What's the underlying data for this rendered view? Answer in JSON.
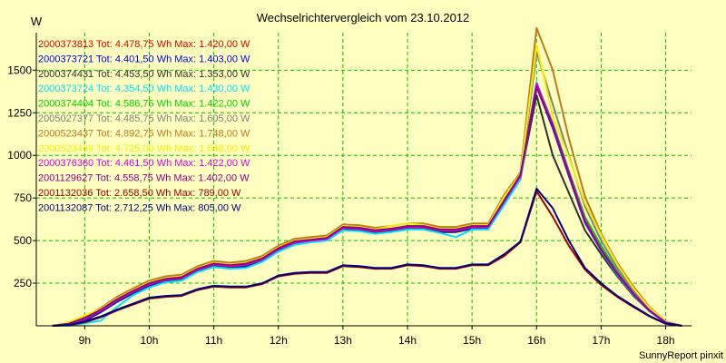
{
  "chart_data": {
    "type": "line",
    "title": "Wechselrichtervergleich vom 23.10.2012",
    "ylabel": "W",
    "xlabel": "",
    "credit": "SunnyReport pinxit",
    "xlim": [
      8.25,
      18.4
    ],
    "ylim": [
      0,
      1720
    ],
    "grid": true,
    "legend_placement": "top-left",
    "xticks": [
      {
        "value": 9,
        "label": "9h"
      },
      {
        "value": 10,
        "label": "10h"
      },
      {
        "value": 11,
        "label": "11h"
      },
      {
        "value": 12,
        "label": "12h"
      },
      {
        "value": 13,
        "label": "13h"
      },
      {
        "value": 14,
        "label": "14h"
      },
      {
        "value": 15,
        "label": "15h"
      },
      {
        "value": 16,
        "label": "16h"
      },
      {
        "value": 17,
        "label": "17h"
      },
      {
        "value": 18,
        "label": "18h"
      }
    ],
    "yticks": [
      {
        "value": 250,
        "label": "250"
      },
      {
        "value": 500,
        "label": "500"
      },
      {
        "value": 750,
        "label": "750"
      },
      {
        "value": 1000,
        "label": "1000"
      },
      {
        "value": 1250,
        "label": "1250"
      },
      {
        "value": 1500,
        "label": "1500"
      }
    ],
    "x": [
      8.5,
      8.75,
      9.0,
      9.25,
      9.5,
      9.75,
      10.0,
      10.25,
      10.5,
      10.75,
      11.0,
      11.25,
      11.5,
      11.75,
      12.0,
      12.25,
      12.5,
      12.75,
      13.0,
      13.25,
      13.5,
      13.75,
      14.0,
      14.25,
      14.5,
      14.75,
      15.0,
      15.25,
      15.5,
      15.75,
      16.0,
      16.25,
      16.5,
      16.75,
      17.0,
      17.25,
      17.5,
      17.75,
      18.0,
      18.25
    ],
    "series": [
      {
        "name": "2000373813 Tot: 4.478,75 Wh Max: 1.420,00 W",
        "color": "#e00000",
        "values": [
          0,
          10,
          40,
          90,
          150,
          200,
          245,
          270,
          280,
          330,
          360,
          350,
          360,
          390,
          450,
          490,
          500,
          510,
          575,
          570,
          555,
          565,
          580,
          580,
          560,
          560,
          580,
          580,
          730,
          880,
          1420,
          1180,
          900,
          620,
          450,
          310,
          190,
          90,
          20,
          0
        ]
      },
      {
        "name": "2000373721 Tot: 4.401,50 Wh Max: 1.403,00 W",
        "color": "#0000e0",
        "values": [
          0,
          5,
          30,
          80,
          140,
          190,
          235,
          260,
          270,
          320,
          350,
          340,
          345,
          380,
          440,
          480,
          495,
          505,
          565,
          560,
          545,
          555,
          570,
          570,
          550,
          550,
          570,
          570,
          715,
          860,
          1403,
          1160,
          880,
          605,
          440,
          300,
          180,
          85,
          18,
          0
        ]
      },
      {
        "name": "2000374431 Tot: 4.453,50 Wh Max: 1.353,00 W",
        "color": "#303030",
        "values": [
          0,
          8,
          35,
          85,
          145,
          195,
          240,
          265,
          275,
          325,
          355,
          345,
          355,
          385,
          445,
          485,
          500,
          510,
          570,
          565,
          550,
          560,
          575,
          575,
          555,
          555,
          575,
          575,
          740,
          870,
          1353,
          1000,
          780,
          560,
          420,
          290,
          175,
          85,
          18,
          0
        ]
      },
      {
        "name": "2000373724 Tot: 4.354,50 Wh Max: 1.430,00 W",
        "color": "#00e0ff",
        "values": [
          0,
          0,
          15,
          30,
          110,
          180,
          225,
          255,
          265,
          315,
          345,
          335,
          340,
          375,
          435,
          475,
          490,
          500,
          560,
          555,
          540,
          550,
          565,
          565,
          545,
          520,
          565,
          565,
          710,
          860,
          1430,
          1170,
          890,
          610,
          440,
          300,
          180,
          85,
          18,
          0
        ]
      },
      {
        "name": "2000374404 Tot: 4.586,75 Wh Max: 1.422,00 W",
        "color": "#00d000",
        "values": [
          0,
          12,
          45,
          95,
          155,
          205,
          250,
          275,
          285,
          335,
          365,
          355,
          365,
          395,
          455,
          495,
          505,
          515,
          580,
          575,
          560,
          570,
          585,
          585,
          565,
          565,
          585,
          585,
          735,
          890,
          1422,
          1190,
          910,
          640,
          470,
          320,
          195,
          95,
          22,
          0
        ]
      },
      {
        "name": "2005027377 Tot: 4.485,75 Wh Max: 1.605,00 W",
        "color": "#808080",
        "values": [
          0,
          10,
          40,
          90,
          150,
          200,
          245,
          270,
          280,
          330,
          360,
          350,
          360,
          390,
          450,
          490,
          500,
          510,
          575,
          570,
          555,
          565,
          580,
          580,
          560,
          560,
          580,
          580,
          750,
          870,
          1605,
          1300,
          1000,
          700,
          500,
          340,
          210,
          100,
          22,
          0
        ]
      },
      {
        "name": "2000523437 Tot: 4.892,75 Wh Max: 1.748,00 W",
        "color": "#c07820",
        "values": [
          0,
          15,
          55,
          105,
          170,
          220,
          265,
          290,
          300,
          350,
          380,
          370,
          380,
          410,
          470,
          510,
          520,
          530,
          595,
          590,
          575,
          585,
          600,
          600,
          580,
          580,
          600,
          600,
          770,
          900,
          1748,
          1500,
          1100,
          760,
          540,
          370,
          230,
          110,
          25,
          0
        ]
      },
      {
        "name": "2000523439 Tot: 4.725,00 Wh Max: 1.648,00 W",
        "color": "#f0f000",
        "values": [
          0,
          20,
          60,
          100,
          160,
          210,
          255,
          280,
          290,
          340,
          370,
          360,
          370,
          400,
          460,
          500,
          510,
          520,
          585,
          580,
          565,
          585,
          600,
          590,
          570,
          570,
          590,
          590,
          760,
          890,
          1648,
          1230,
          990,
          720,
          530,
          360,
          220,
          105,
          24,
          0
        ]
      },
      {
        "name": "2000376360 Tot: 4.461,50 Wh Max: 1.422,00 W",
        "color": "#e000e0",
        "values": [
          0,
          10,
          40,
          90,
          150,
          200,
          245,
          270,
          280,
          330,
          360,
          350,
          360,
          390,
          450,
          490,
          500,
          510,
          575,
          570,
          555,
          565,
          580,
          580,
          560,
          560,
          580,
          580,
          730,
          880,
          1422,
          1180,
          900,
          620,
          450,
          310,
          190,
          90,
          20,
          0
        ]
      },
      {
        "name": "2001129627 Tot: 4.558,75 Wh Max: 1.402,00 W",
        "color": "#900090",
        "values": [
          0,
          12,
          45,
          95,
          155,
          205,
          250,
          275,
          285,
          335,
          365,
          355,
          365,
          395,
          455,
          495,
          505,
          515,
          580,
          575,
          560,
          570,
          585,
          585,
          565,
          565,
          585,
          585,
          735,
          885,
          1402,
          1170,
          890,
          610,
          445,
          305,
          185,
          88,
          19,
          0
        ]
      },
      {
        "name": "2001132036 Tot: 2.658,50 Wh Max: 789,00 W",
        "color": "#a00000",
        "values": [
          0,
          3,
          20,
          50,
          90,
          125,
          160,
          170,
          175,
          210,
          230,
          225,
          225,
          245,
          290,
          305,
          310,
          310,
          350,
          345,
          335,
          335,
          355,
          350,
          335,
          335,
          355,
          355,
          410,
          490,
          789,
          640,
          470,
          330,
          240,
          170,
          110,
          55,
          12,
          0
        ]
      },
      {
        "name": "2001132087 Tot: 2.712,25 Wh Max: 805,00 W",
        "color": "#000080",
        "values": [
          0,
          5,
          25,
          55,
          95,
          130,
          165,
          175,
          180,
          215,
          235,
          230,
          230,
          250,
          295,
          310,
          315,
          315,
          355,
          350,
          340,
          340,
          360,
          355,
          340,
          340,
          360,
          360,
          420,
          495,
          805,
          690,
          500,
          340,
          250,
          175,
          115,
          58,
          13,
          0
        ]
      }
    ]
  }
}
